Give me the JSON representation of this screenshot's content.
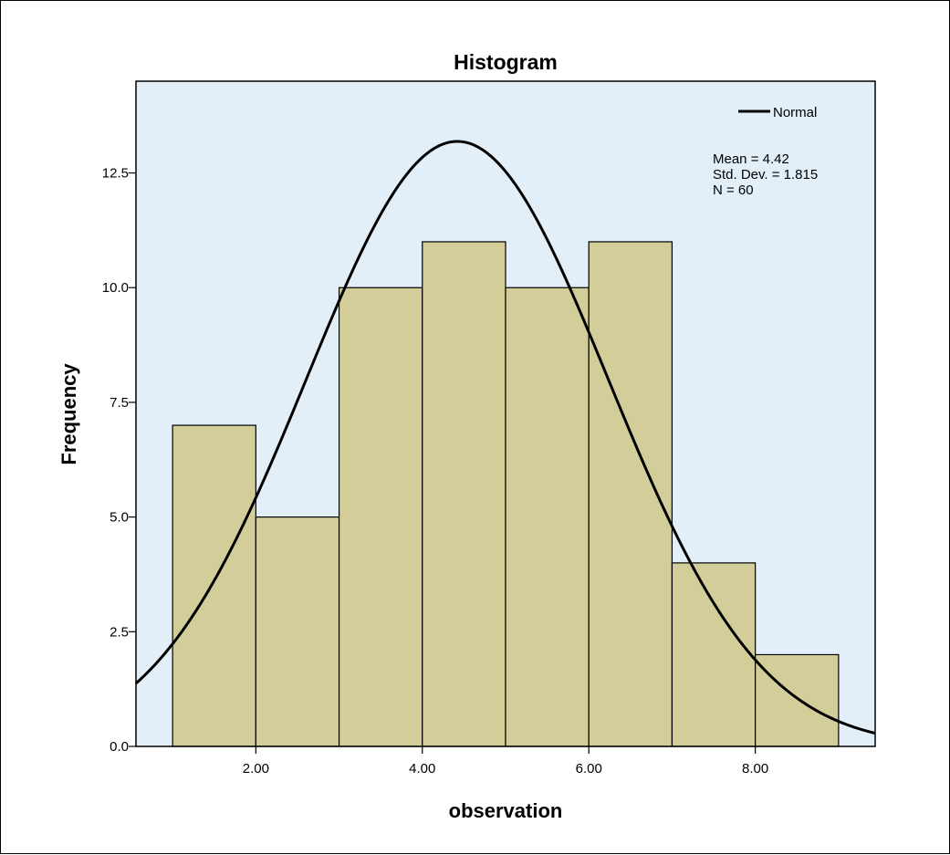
{
  "chart_data": {
    "type": "bar",
    "title": "Histogram",
    "xlabel": "observation",
    "ylabel": "Frequency",
    "bins": [
      {
        "start": 1,
        "end": 2,
        "count": 7
      },
      {
        "start": 2,
        "end": 3,
        "count": 5
      },
      {
        "start": 3,
        "end": 4,
        "count": 10
      },
      {
        "start": 4,
        "end": 5,
        "count": 11
      },
      {
        "start": 5,
        "end": 6,
        "count": 10
      },
      {
        "start": 6,
        "end": 7,
        "count": 11
      },
      {
        "start": 7,
        "end": 8,
        "count": 4
      },
      {
        "start": 8,
        "end": 9,
        "count": 2
      }
    ],
    "xlim": [
      0.56,
      9.44
    ],
    "ylim": [
      0,
      14.5
    ],
    "x_ticks": [
      2,
      4,
      6,
      8
    ],
    "x_tick_labels": [
      "2.00",
      "4.00",
      "6.00",
      "8.00"
    ],
    "y_ticks": [
      0,
      2.5,
      5,
      7.5,
      10,
      12.5
    ],
    "y_tick_labels": [
      "0.0",
      "2.5",
      "5.0",
      "7.5",
      "10.0",
      "12.5"
    ],
    "normal_curve": {
      "name": "Normal",
      "mean": 4.42,
      "std": 1.815,
      "n": 60,
      "bin_width": 1
    },
    "stats": [
      "Mean = 4.42",
      "Std. Dev. = 1.815",
      "N = 60"
    ],
    "legend_position": "top-right",
    "grid": false
  },
  "colors": {
    "plot_background": "#e2eef8",
    "bar_fill": "#d3cd99",
    "bar_stroke": "#000000",
    "curve": "#000000"
  }
}
